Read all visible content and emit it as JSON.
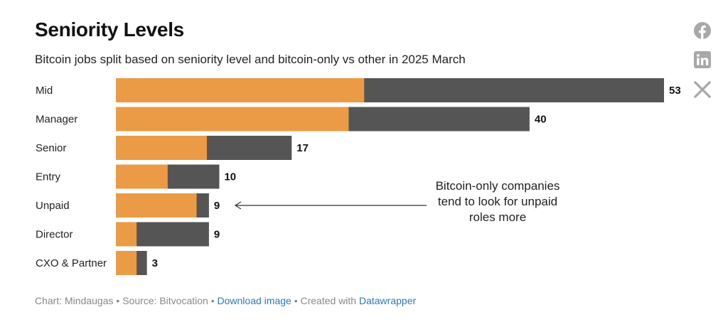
{
  "header": {
    "title": "Seniority Levels",
    "subtitle": "Bitcoin jobs split based on seniority level and bitcoin-only vs other in 2025 March"
  },
  "social": {
    "facebook": "facebook-icon",
    "linkedin": "linkedin-icon",
    "x": "x-icon"
  },
  "colors": {
    "bitcoin_only": "#eb9a45",
    "other": "#555555",
    "icon": "#a8a8a8"
  },
  "chart_data": {
    "type": "bar",
    "orientation": "horizontal",
    "stacked": true,
    "categories": [
      "Mid",
      "Manager",
      "Senior",
      "Entry",
      "Unpaid",
      "Director",
      "CXO & Partner"
    ],
    "series": [
      {
        "values": [
          24,
          22.5,
          8.8,
          5,
          7.8,
          2,
          2
        ]
      },
      {
        "values": [
          29,
          17.5,
          8.2,
          5,
          1.2,
          7,
          1
        ]
      }
    ],
    "totals": [
      53,
      40,
      17,
      10,
      9,
      9,
      3
    ],
    "xlim": [
      0,
      53
    ],
    "grid": false,
    "annotations": [
      {
        "category": "Unpaid",
        "lines": [
          "Bitcoin-only companies",
          "tend to look for unpaid",
          "roles more"
        ]
      }
    ]
  },
  "footer": {
    "chart_prefix": "Chart: ",
    "author": "Mindaugas",
    "sep1": " • ",
    "source_prefix": "Source: ",
    "source": "Bitvocation",
    "sep2": " • ",
    "download": "Download image",
    "sep3": " • ",
    "created_with": "Created with ",
    "tool": "Datawrapper"
  }
}
